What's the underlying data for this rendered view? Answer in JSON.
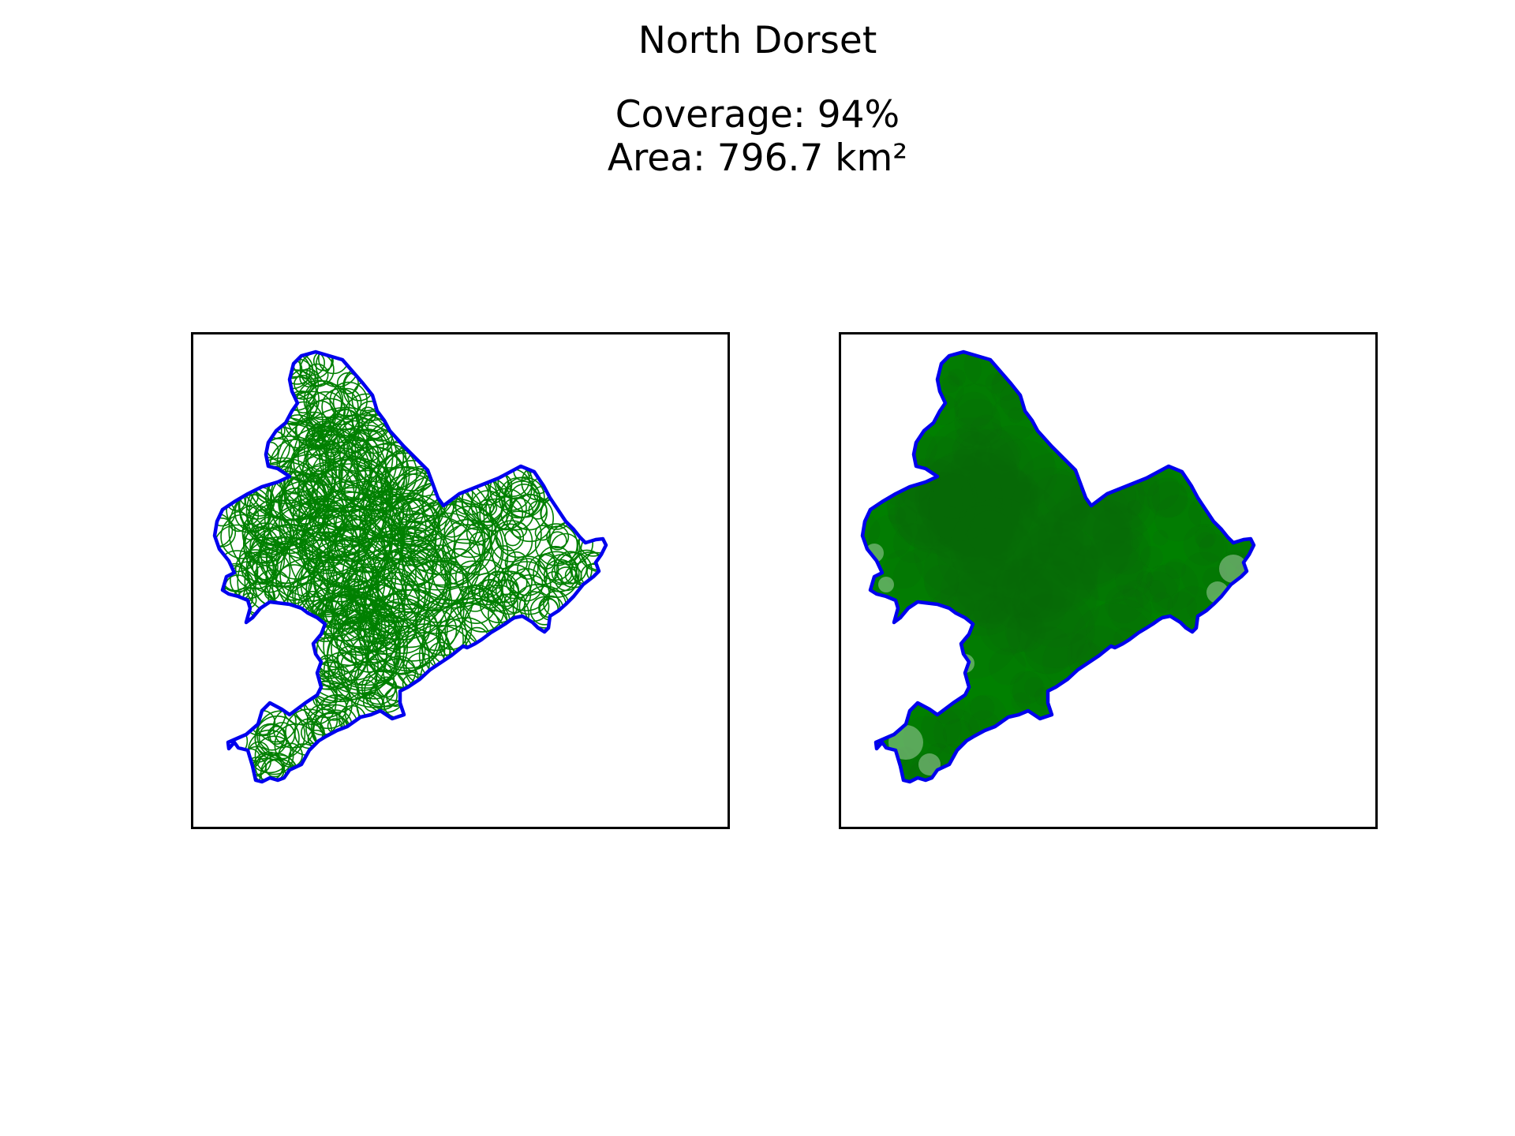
{
  "title": "North Dorset",
  "coverage_text": "Coverage: 94%",
  "area_text": "Area: 796.7 km²",
  "colors": {
    "boundary": "#0000ee",
    "circles": "#008000",
    "fill": "#008000",
    "frame": "#000000",
    "background": "#ffffff"
  },
  "panels": [
    {
      "name": "circle-outlines"
    },
    {
      "name": "filled-coverage"
    }
  ]
}
